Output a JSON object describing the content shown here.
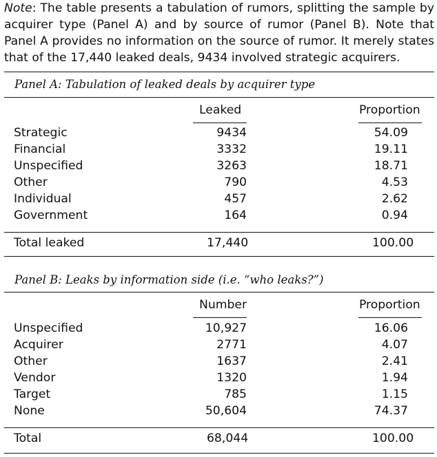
{
  "note": {
    "lead": "Note",
    "text": ": The table presents a tabulation of rumors, splitting the sample by acquirer type (Panel A) and by source of rumor (Panel B). Note that Panel A provides no information on the source of rumor. It merely states that of the 17,440 leaked deals, 9434 involved strategic acquirers."
  },
  "panel_a": {
    "title": "Panel A: Tabulation of leaked deals by acquirer type",
    "col_headers": [
      "Leaked",
      "Proportion"
    ],
    "rows": [
      {
        "label": "Strategic",
        "value": "9434",
        "proportion": "54.09"
      },
      {
        "label": "Financial",
        "value": "3332",
        "proportion": "19.11"
      },
      {
        "label": "Unspecified",
        "value": "3263",
        "proportion": "18.71"
      },
      {
        "label": "Other",
        "value": "790",
        "proportion": "4.53"
      },
      {
        "label": "Individual",
        "value": "457",
        "proportion": "2.62"
      },
      {
        "label": "Government",
        "value": "164",
        "proportion": "0.94"
      }
    ],
    "total": {
      "label": "Total leaked",
      "value": "17,440",
      "proportion": "100.00"
    }
  },
  "panel_b": {
    "title": "Panel B: Leaks by information side (i.e. “who leaks?”)",
    "col_headers": [
      "Number",
      "Proportion"
    ],
    "rows": [
      {
        "label": "Unspecified",
        "value": "10,927",
        "proportion": "16.06"
      },
      {
        "label": "Acquirer",
        "value": "2771",
        "proportion": "4.07"
      },
      {
        "label": "Other",
        "value": "1637",
        "proportion": "2.41"
      },
      {
        "label": "Vendor",
        "value": "1320",
        "proportion": "1.94"
      },
      {
        "label": "Target",
        "value": "785",
        "proportion": "1.15"
      },
      {
        "label": "None",
        "value": "50,604",
        "proportion": "74.37"
      }
    ],
    "total": {
      "label": "Total",
      "value": "68,044",
      "proportion": "100.00"
    }
  }
}
